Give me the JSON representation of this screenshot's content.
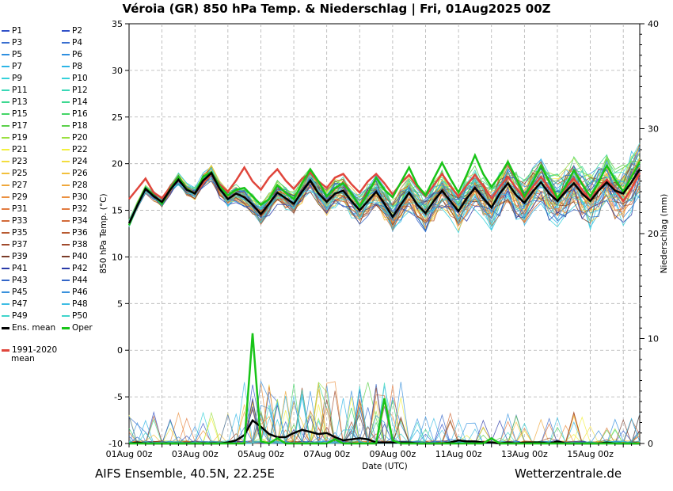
{
  "title": "Véroia  (GR)  850 hPa Temp. & Niederschlag | Fri, 01Aug2025 00Z",
  "footer": {
    "left": "AIFS Ensemble, 40.5N, 22.25E",
    "right": "Wetterzentrale.de"
  },
  "chart_data": {
    "type": "line",
    "xlabel": "Date (UTC)",
    "ylabel": "850 hPa Temp. (°C)",
    "y2label": "Niederschlag (mm)",
    "ylim": [
      -10,
      35
    ],
    "y2lim": [
      0,
      40
    ],
    "yticks": [
      "-10",
      "-5",
      "0",
      "5",
      "10",
      "15",
      "20",
      "25",
      "30",
      "35"
    ],
    "y2ticks": [
      "0",
      "10",
      "20",
      "30",
      "40"
    ],
    "xlim": [
      0,
      15.5
    ],
    "xticks": [
      {
        "day": 0,
        "label": "01Aug 00z"
      },
      {
        "day": 2,
        "label": "03Aug 00z"
      },
      {
        "day": 4,
        "label": "05Aug 00z"
      },
      {
        "day": 6,
        "label": "07Aug 00z"
      },
      {
        "day": 8,
        "label": "09Aug 00z"
      },
      {
        "day": 10,
        "label": "11Aug 00z"
      },
      {
        "day": 12,
        "label": "13Aug 00z"
      },
      {
        "day": 14,
        "label": "15Aug 00z"
      }
    ],
    "grid": true,
    "x_step_days": 0.25,
    "series": [
      {
        "name": "1991-2020 mean",
        "color": "#e0463c",
        "width": 2.5,
        "values": [
          16.2,
          17.3,
          18.4,
          16.9,
          16.3,
          17.5,
          18.6,
          17.4,
          16.8,
          17.9,
          19.0,
          17.8,
          17.0,
          18.2,
          19.6,
          18.1,
          17.2,
          18.5,
          19.4,
          18.2,
          17.3,
          18.4,
          19.0,
          18.1,
          17.4,
          18.5,
          18.9,
          17.8,
          16.9,
          18.1,
          18.9,
          17.9,
          16.7,
          17.9,
          18.8,
          17.5,
          16.5,
          17.7,
          18.9,
          17.6,
          16.5,
          17.7,
          18.8,
          17.6,
          16.3,
          17.5,
          18.6,
          17.4,
          16.3,
          17.5,
          18.6,
          17.4,
          16.2,
          17.4,
          18.4,
          17.2,
          16.1,
          17.3,
          18.3,
          17.2,
          16.0,
          17.3,
          19.0
        ]
      },
      {
        "name": "Oper",
        "color": "#18c418",
        "width": 2.5,
        "values": [
          13.4,
          15.6,
          17.4,
          16.6,
          15.7,
          17.3,
          18.6,
          17.3,
          16.8,
          18.6,
          19.1,
          17.6,
          16.6,
          17.2,
          17.4,
          16.5,
          15.6,
          16.2,
          17.7,
          16.9,
          16.2,
          17.9,
          19.4,
          18.1,
          16.5,
          17.4,
          17.9,
          16.8,
          15.4,
          16.8,
          18.5,
          17.2,
          16.4,
          18.0,
          19.6,
          17.7,
          16.6,
          18.4,
          20.1,
          18.4,
          16.9,
          18.8,
          20.9,
          18.9,
          17.5,
          18.7,
          20.2,
          18.4,
          16.5,
          18.0,
          19.8,
          18.1,
          16.3,
          17.6,
          19.3,
          17.8,
          16.5,
          18.0,
          19.8,
          18.3,
          17.0,
          18.6,
          20.2
        ]
      },
      {
        "name": "Ens. mean",
        "color": "#000000",
        "width": 2.5,
        "values": [
          13.6,
          15.5,
          17.3,
          16.5,
          15.9,
          17.2,
          18.3,
          17.2,
          16.8,
          18.2,
          19.0,
          17.3,
          16.2,
          16.8,
          16.4,
          15.6,
          14.6,
          15.7,
          16.9,
          16.3,
          15.7,
          17.0,
          18.2,
          16.8,
          15.9,
          16.8,
          17.1,
          16.0,
          15.0,
          16.0,
          17.0,
          15.7,
          14.3,
          15.6,
          16.9,
          15.6,
          14.7,
          16.0,
          17.1,
          16.0,
          14.9,
          16.3,
          17.4,
          16.3,
          15.3,
          16.8,
          17.9,
          16.6,
          15.8,
          17.0,
          18.0,
          16.8,
          16.0,
          17.0,
          17.9,
          16.8,
          16.0,
          17.1,
          18.0,
          17.1,
          16.8,
          18.0,
          19.4
        ]
      }
    ],
    "precip_series": [
      {
        "name": "Ens. mean",
        "color": "#000000",
        "width": 2.5,
        "values": [
          0,
          0.1,
          0,
          0,
          0,
          0,
          0,
          0,
          0,
          0,
          0,
          0,
          0.1,
          0.3,
          0.8,
          2.2,
          1.6,
          0.9,
          0.6,
          0.6,
          1.0,
          1.3,
          1.1,
          0.9,
          1.0,
          0.6,
          0.3,
          0.4,
          0.5,
          0.4,
          0.1,
          0.1,
          0.1,
          0.1,
          0.1,
          0,
          0,
          0,
          0,
          0.1,
          0.3,
          0.2,
          0.2,
          0.1,
          0.1,
          0,
          0.1,
          0,
          0.1,
          0.1,
          0.1,
          0,
          0.2,
          0,
          0,
          0,
          0,
          0,
          0.1,
          0,
          0,
          0,
          0
        ]
      },
      {
        "name": "Oper",
        "color": "#18c418",
        "width": 2.5,
        "values": [
          0,
          0,
          0,
          0,
          0,
          0,
          0,
          0,
          0,
          0,
          0,
          0,
          0,
          0,
          0,
          10.5,
          0.2,
          0,
          0.5,
          0,
          0,
          0,
          0,
          0,
          0,
          0.4,
          0,
          0,
          0,
          0,
          0,
          4.3,
          0.3,
          0,
          0,
          0,
          0,
          0,
          0,
          0,
          0,
          0,
          0,
          0,
          0.5,
          0,
          0,
          0,
          0,
          0,
          0,
          0,
          0,
          0,
          0,
          0,
          0,
          0,
          0,
          0,
          0,
          0,
          0
        ]
      }
    ]
  },
  "legend": {
    "pairs": [
      [
        "P1",
        "P2"
      ],
      [
        "P3",
        "P4"
      ],
      [
        "P5",
        "P6"
      ],
      [
        "P7",
        "P8"
      ],
      [
        "P9",
        "P10"
      ],
      [
        "P11",
        "P12"
      ],
      [
        "P13",
        "P14"
      ],
      [
        "P15",
        "P16"
      ],
      [
        "P17",
        "P18"
      ],
      [
        "P19",
        "P20"
      ],
      [
        "P21",
        "P22"
      ],
      [
        "P23",
        "P24"
      ],
      [
        "P25",
        "P26"
      ],
      [
        "P27",
        "P28"
      ],
      [
        "P29",
        "P30"
      ],
      [
        "P31",
        "P32"
      ],
      [
        "P33",
        "P34"
      ],
      [
        "P35",
        "P36"
      ],
      [
        "P37",
        "P38"
      ],
      [
        "P39",
        "P40"
      ],
      [
        "P41",
        "P42"
      ],
      [
        "P43",
        "P44"
      ],
      [
        "P45",
        "P46"
      ],
      [
        "P47",
        "P48"
      ],
      [
        "P49",
        "P50"
      ]
    ],
    "colors": [
      "#3050c8",
      "#3a6fd0",
      "#2f8fe0",
      "#2db5e6",
      "#36d1da",
      "#3ad8b7",
      "#3dd890",
      "#44d566",
      "#5cd04a",
      "#9be040",
      "#f3f03f",
      "#f3dd3f",
      "#f2c03c",
      "#efa83c",
      "#eb9040",
      "#e27b40",
      "#d26a38",
      "#b85a30",
      "#a04a2c",
      "#7a3b28",
      "#2a3aa8",
      "#3467c8",
      "#3a91dc",
      "#3fbde4",
      "#40d4cb"
    ],
    "ens_mean": "Ens. mean",
    "oper": "Oper",
    "clim": "1991-2020",
    "clim2": "mean"
  }
}
